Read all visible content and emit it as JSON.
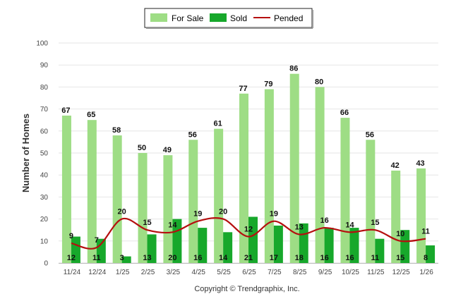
{
  "chart_data": {
    "type": "bar",
    "title": "",
    "xlabel": "",
    "ylabel": "Number of Homes",
    "ylim": [
      0,
      100
    ],
    "yticks": [
      0,
      10,
      20,
      30,
      40,
      50,
      60,
      70,
      80,
      90,
      100
    ],
    "grid": true,
    "legend_position": "top-center",
    "categories": [
      "11/24",
      "12/24",
      "1/25",
      "2/25",
      "3/25",
      "4/25",
      "5/25",
      "6/25",
      "7/25",
      "8/25",
      "9/25",
      "10/25",
      "11/25",
      "12/25",
      "1/26"
    ],
    "series": [
      {
        "name": "For Sale",
        "kind": "bar",
        "color": "#9edd85",
        "values": [
          67,
          65,
          58,
          50,
          49,
          56,
          61,
          77,
          79,
          86,
          80,
          66,
          56,
          42,
          43
        ]
      },
      {
        "name": "Sold",
        "kind": "bar",
        "color": "#17a82b",
        "values": [
          12,
          11,
          3,
          13,
          20,
          16,
          14,
          21,
          17,
          18,
          16,
          16,
          11,
          15,
          8
        ]
      },
      {
        "name": "Pended",
        "kind": "line",
        "color": "#b50f0f",
        "values": [
          9,
          7,
          20,
          15,
          14,
          19,
          20,
          12,
          19,
          13,
          16,
          14,
          15,
          10,
          11
        ]
      }
    ]
  },
  "footer": {
    "copyright": "Copyright © Trendgraphix, Inc."
  }
}
